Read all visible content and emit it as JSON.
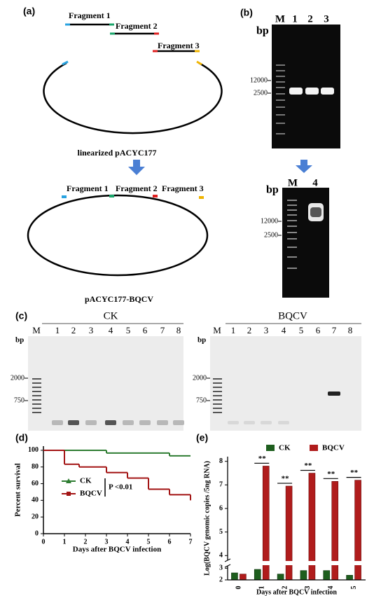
{
  "panel_a": {
    "label": "(a)",
    "fragments": [
      "Fragment 1",
      "Fragment 2",
      "Fragment 3"
    ],
    "linear_caption": "linearized pACYC177",
    "assembled_fragments": [
      "Fragment 1",
      "Fragment 2",
      "Fragment 3"
    ],
    "assembled_caption": "pACYC177-BQCV"
  },
  "panel_b": {
    "label": "(b)",
    "gels": [
      {
        "lanes": [
          "M",
          "1",
          "2",
          "3"
        ],
        "unit": "bp",
        "markers": [
          "12000",
          "2500"
        ]
      },
      {
        "lanes": [
          "M",
          "4"
        ],
        "unit": "bp",
        "markers": [
          "12000",
          "2500"
        ]
      }
    ]
  },
  "panel_c": {
    "label": "(c)",
    "gels": [
      {
        "title": "CK",
        "lanes": [
          "M",
          "1",
          "2",
          "3",
          "4",
          "5",
          "6",
          "7",
          "8"
        ],
        "unit": "bp",
        "markers": [
          "2000",
          "750"
        ]
      },
      {
        "title": "BQCV",
        "lanes": [
          "M",
          "1",
          "2",
          "3",
          "4",
          "5",
          "6",
          "7",
          "8"
        ],
        "unit": "bp",
        "markers": [
          "2000",
          "750"
        ]
      }
    ]
  },
  "chart_data": [
    {
      "type": "line",
      "panel_label": "(d)",
      "step": true,
      "xlabel": "Days after BQCV infection",
      "ylabel": "Percent survival",
      "xlim": [
        0,
        7
      ],
      "ylim": [
        0,
        105
      ],
      "xticks": [
        0,
        1,
        2,
        3,
        4,
        5,
        6,
        7
      ],
      "yticks": [
        0,
        20,
        40,
        60,
        80,
        100
      ],
      "legend": "center left",
      "annotation": "P <0.01",
      "series": [
        {
          "name": "CK",
          "color": "#2e7d32",
          "x": [
            0,
            3,
            6,
            7
          ],
          "values": [
            100,
            96.7,
            93.3,
            93.3
          ]
        },
        {
          "name": "BQCV",
          "color": "#a31515",
          "x": [
            0,
            1,
            1.7,
            3,
            4,
            5,
            6,
            7
          ],
          "values": [
            100,
            83.3,
            80,
            73.3,
            66.7,
            53.3,
            46.7,
            40
          ]
        }
      ]
    },
    {
      "type": "bar",
      "panel_label": "(e)",
      "xlabel": "Days after BQCV infection",
      "ylabel": "Log(BQCV genomic copies /5ng RNA)",
      "categories": [
        "0",
        "1",
        "2",
        "3",
        "4",
        "5"
      ],
      "ylim": [
        2,
        8.2
      ],
      "ybreak": [
        3.2,
        3.8
      ],
      "yticks": [
        2,
        3,
        4,
        5,
        6,
        7,
        8
      ],
      "legend": "upper center",
      "significance": [
        null,
        "**",
        "**",
        "**",
        "**",
        "**"
      ],
      "series": [
        {
          "name": "CK",
          "color": "#1e5e1e",
          "values": [
            2.6,
            2.9,
            2.5,
            2.8,
            2.8,
            2.4
          ]
        },
        {
          "name": "BQCV",
          "color": "#b01c1c",
          "values": [
            2.5,
            7.8,
            6.95,
            7.5,
            7.15,
            7.2
          ]
        }
      ]
    }
  ]
}
